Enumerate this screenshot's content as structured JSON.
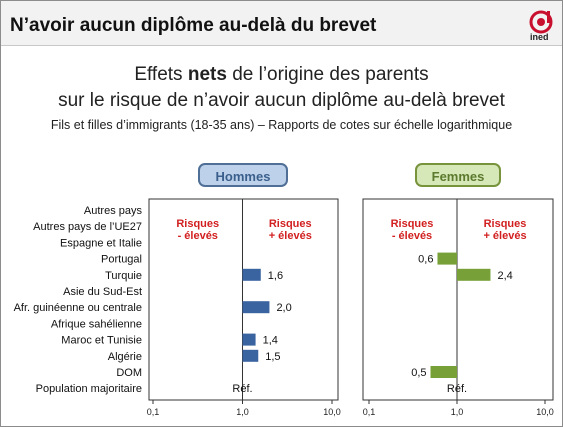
{
  "header": {
    "title": "N’avoir aucun diplôme au-delà du brevet",
    "logo_text": "ined"
  },
  "heading": {
    "line1_before": "Effets ",
    "line1_bold": "nets",
    "line1_after": " de l’origine des parents",
    "line2": "sur le risque de n’avoir aucun diplôme au-delà brevet",
    "line3": "Fils et filles d’immigrants (18-35 ans) – Rapports de cotes sur échelle logarithmique"
  },
  "colors": {
    "hommes_bar": "#3a64a0",
    "femmes_bar": "#77a038",
    "annotation_red": "#d21f1f"
  },
  "chart_data": {
    "type": "bar",
    "orientation": "horizontal",
    "scale": "log",
    "xlim": [
      0.1,
      10
    ],
    "xticks": [
      "0,1",
      "1,0",
      "10,0"
    ],
    "reference_value": 1,
    "categories": [
      "Autres pays",
      "Autres pays de l’UE27",
      "Espagne et Italie",
      "Portugal",
      "Turquie",
      "Asie du Sud-Est",
      "Afr. guinéenne ou centrale",
      "Afrique sahélienne",
      "Maroc et Tunisie",
      "Algérie",
      "DOM",
      "Population majoritaire"
    ],
    "series": [
      {
        "name": "Hommes",
        "values": [
          null,
          null,
          null,
          null,
          1.6,
          null,
          2.0,
          null,
          1.4,
          1.5,
          null,
          1
        ],
        "labels": [
          "",
          "",
          "",
          "",
          "1,6",
          "",
          "2,0",
          "",
          "1,4",
          "1,5",
          "",
          "Réf."
        ]
      },
      {
        "name": "Femmes",
        "values": [
          null,
          null,
          null,
          0.6,
          2.4,
          null,
          null,
          null,
          null,
          null,
          0.5,
          1
        ],
        "labels": [
          "",
          "",
          "",
          "0,6",
          "2,4",
          "",
          "",
          "",
          "",
          "",
          "0,5",
          "Réf."
        ]
      }
    ],
    "annotations": {
      "lower_risk": [
        "Risques",
        "- élevés"
      ],
      "higher_risk": [
        "Risques",
        "+ élevés"
      ]
    }
  }
}
